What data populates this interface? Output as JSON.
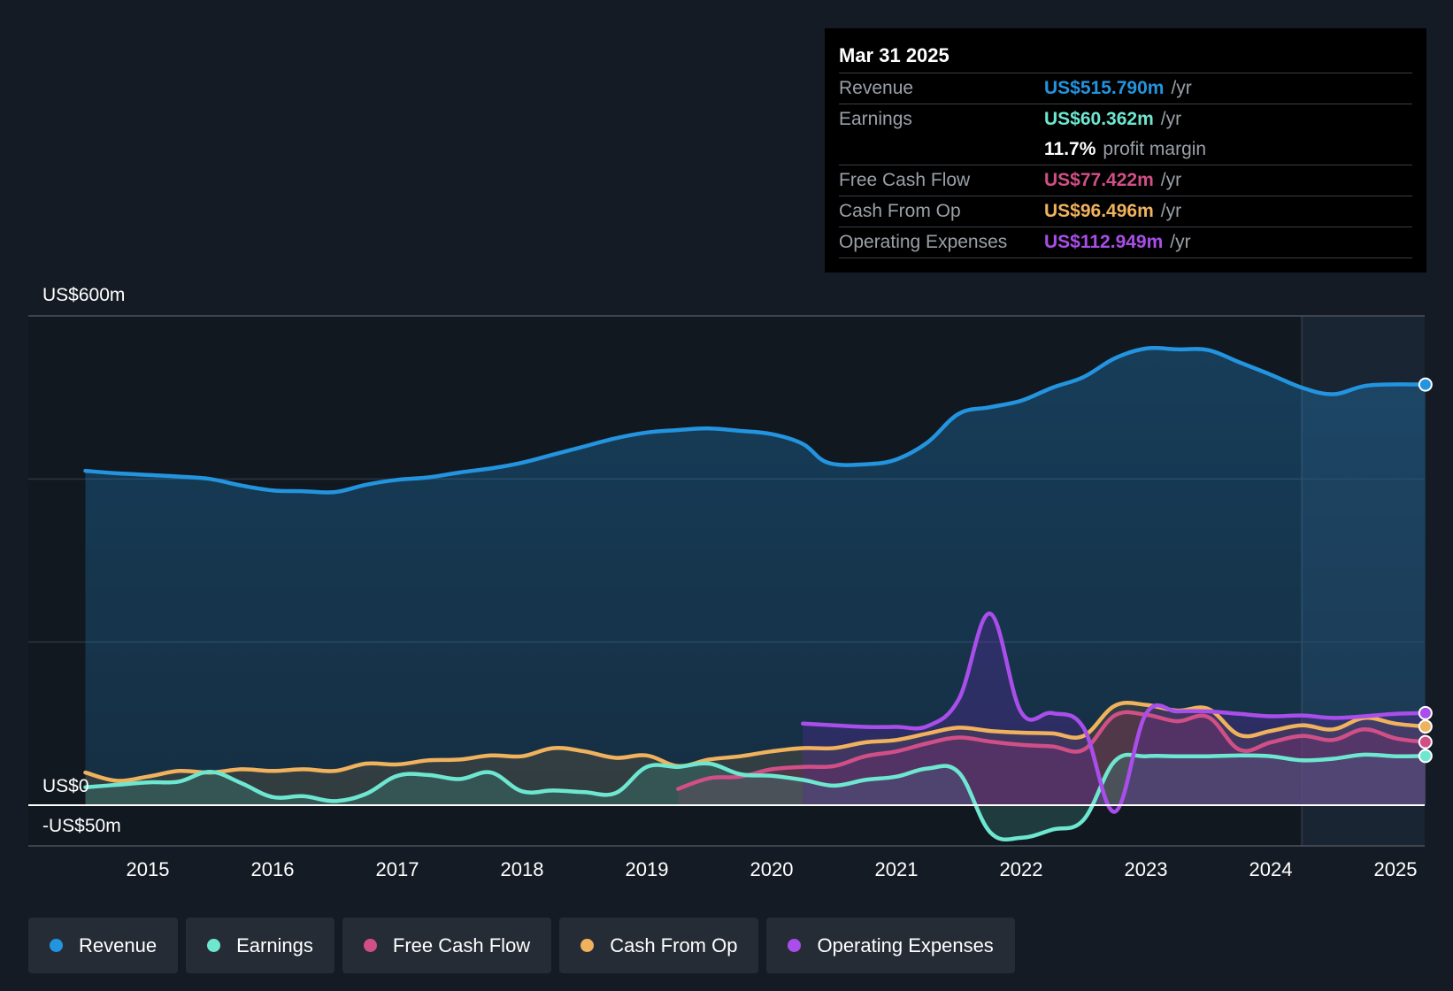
{
  "tooltip": {
    "date": "Mar 31 2025",
    "rows": [
      {
        "label": "Revenue",
        "value": "US$515.790m",
        "unit": "/yr",
        "color": "#2394df"
      },
      {
        "label": "Earnings",
        "value": "US$60.362m",
        "unit": "/yr",
        "color": "#6ee7d1"
      },
      {
        "label": "",
        "value": "11.7%",
        "unit": "profit margin",
        "color": "#ffffff"
      },
      {
        "label": "Free Cash Flow",
        "value": "US$77.422m",
        "unit": "/yr",
        "color": "#d14f87"
      },
      {
        "label": "Cash From Op",
        "value": "US$96.496m",
        "unit": "/yr",
        "color": "#f0b25d"
      },
      {
        "label": "Operating Expenses",
        "value": "US$112.949m",
        "unit": "/yr",
        "color": "#a94eea"
      }
    ]
  },
  "legend": [
    {
      "label": "Revenue",
      "color": "#2394df"
    },
    {
      "label": "Earnings",
      "color": "#6ee7d1"
    },
    {
      "label": "Free Cash Flow",
      "color": "#d14f87"
    },
    {
      "label": "Cash From Op",
      "color": "#f0b25d"
    },
    {
      "label": "Operating Expenses",
      "color": "#a94eea"
    }
  ],
  "chart_data": {
    "type": "area",
    "title": "",
    "xlabel": "",
    "ylabel": "",
    "ylim": [
      -50,
      600
    ],
    "xlim": [
      2014.05,
      2025.24
    ],
    "y_axis_labels": [
      {
        "value": 600,
        "label": "US$600m"
      },
      {
        "value": 0,
        "label": "US$0"
      },
      {
        "value": -50,
        "label": "-US$50m"
      }
    ],
    "gridlines": [
      200,
      400
    ],
    "x_tick_values": [
      2015,
      2016,
      2017,
      2018,
      2019,
      2020,
      2021,
      2022,
      2023,
      2024,
      2025
    ],
    "x_tick_labels": [
      "2015",
      "2016",
      "2017",
      "2018",
      "2019",
      "2020",
      "2021",
      "2022",
      "2023",
      "2024",
      "2025"
    ],
    "forecast_start": 2024.25,
    "series": [
      {
        "name": "Revenue",
        "color": "#2394df",
        "points": [
          [
            2014.5,
            410
          ],
          [
            2014.75,
            407
          ],
          [
            2015,
            405
          ],
          [
            2015.25,
            403
          ],
          [
            2015.5,
            400
          ],
          [
            2015.75,
            392
          ],
          [
            2016,
            386
          ],
          [
            2016.25,
            385
          ],
          [
            2016.5,
            384
          ],
          [
            2016.75,
            393
          ],
          [
            2017,
            399
          ],
          [
            2017.25,
            402
          ],
          [
            2017.5,
            408
          ],
          [
            2017.75,
            413
          ],
          [
            2018,
            420
          ],
          [
            2018.25,
            430
          ],
          [
            2018.5,
            440
          ],
          [
            2018.75,
            450
          ],
          [
            2019,
            457
          ],
          [
            2019.25,
            460
          ],
          [
            2019.5,
            462
          ],
          [
            2019.75,
            459
          ],
          [
            2020,
            455
          ],
          [
            2020.25,
            443
          ],
          [
            2020.45,
            420
          ],
          [
            2020.75,
            418
          ],
          [
            2021,
            424
          ],
          [
            2021.25,
            445
          ],
          [
            2021.5,
            480
          ],
          [
            2021.75,
            488
          ],
          [
            2022,
            496
          ],
          [
            2022.25,
            512
          ],
          [
            2022.5,
            525
          ],
          [
            2022.75,
            548
          ],
          [
            2023,
            560
          ],
          [
            2023.25,
            559
          ],
          [
            2023.5,
            558
          ],
          [
            2023.75,
            543
          ],
          [
            2024,
            528
          ],
          [
            2024.25,
            512
          ],
          [
            2024.5,
            504
          ],
          [
            2024.75,
            514
          ],
          [
            2025,
            516
          ],
          [
            2025.24,
            515.79
          ]
        ]
      },
      {
        "name": "Cash From Op",
        "color": "#f0b25d",
        "points": [
          [
            2014.5,
            40
          ],
          [
            2014.75,
            30
          ],
          [
            2015,
            35
          ],
          [
            2015.25,
            42
          ],
          [
            2015.5,
            40
          ],
          [
            2015.75,
            44
          ],
          [
            2016,
            42
          ],
          [
            2016.25,
            44
          ],
          [
            2016.5,
            42
          ],
          [
            2016.75,
            51
          ],
          [
            2017,
            50
          ],
          [
            2017.25,
            55
          ],
          [
            2017.5,
            56
          ],
          [
            2017.75,
            61
          ],
          [
            2018,
            60
          ],
          [
            2018.25,
            70
          ],
          [
            2018.5,
            66
          ],
          [
            2018.75,
            58
          ],
          [
            2019,
            61
          ],
          [
            2019.25,
            48
          ],
          [
            2019.5,
            56
          ],
          [
            2019.75,
            60
          ],
          [
            2020,
            66
          ],
          [
            2020.25,
            70
          ],
          [
            2020.5,
            70
          ],
          [
            2020.75,
            77
          ],
          [
            2021,
            80
          ],
          [
            2021.25,
            88
          ],
          [
            2021.5,
            95
          ],
          [
            2021.75,
            91
          ],
          [
            2022,
            89
          ],
          [
            2022.25,
            88
          ],
          [
            2022.5,
            85
          ],
          [
            2022.75,
            122
          ],
          [
            2023,
            123
          ],
          [
            2023.25,
            116
          ],
          [
            2023.5,
            118
          ],
          [
            2023.75,
            86
          ],
          [
            2024,
            91
          ],
          [
            2024.25,
            98
          ],
          [
            2024.5,
            93
          ],
          [
            2024.75,
            107
          ],
          [
            2025,
            100
          ],
          [
            2025.24,
            96.496
          ]
        ]
      },
      {
        "name": "Free Cash Flow",
        "color": "#d14f87",
        "points": [
          [
            2019.25,
            20
          ],
          [
            2019.5,
            33
          ],
          [
            2019.75,
            35
          ],
          [
            2020,
            44
          ],
          [
            2020.25,
            47
          ],
          [
            2020.5,
            48
          ],
          [
            2020.75,
            60
          ],
          [
            2021,
            66
          ],
          [
            2021.25,
            76
          ],
          [
            2021.5,
            83
          ],
          [
            2021.75,
            78
          ],
          [
            2022,
            74
          ],
          [
            2022.25,
            72
          ],
          [
            2022.5,
            68
          ],
          [
            2022.75,
            110
          ],
          [
            2023,
            111
          ],
          [
            2023.25,
            103
          ],
          [
            2023.5,
            108
          ],
          [
            2023.75,
            68
          ],
          [
            2024,
            77
          ],
          [
            2024.25,
            85
          ],
          [
            2024.5,
            80
          ],
          [
            2024.75,
            93
          ],
          [
            2025,
            82
          ],
          [
            2025.24,
            77.422
          ]
        ]
      },
      {
        "name": "Earnings",
        "color": "#6ee7d1",
        "points": [
          [
            2014.5,
            22
          ],
          [
            2014.75,
            25
          ],
          [
            2015,
            28
          ],
          [
            2015.25,
            29
          ],
          [
            2015.5,
            41
          ],
          [
            2015.75,
            27
          ],
          [
            2016,
            10
          ],
          [
            2016.25,
            11
          ],
          [
            2016.5,
            5
          ],
          [
            2016.75,
            14
          ],
          [
            2017,
            36
          ],
          [
            2017.25,
            37
          ],
          [
            2017.5,
            32
          ],
          [
            2017.75,
            40
          ],
          [
            2018,
            17
          ],
          [
            2018.25,
            18
          ],
          [
            2018.5,
            16
          ],
          [
            2018.75,
            15
          ],
          [
            2019,
            47
          ],
          [
            2019.25,
            47
          ],
          [
            2019.5,
            51
          ],
          [
            2019.75,
            38
          ],
          [
            2020,
            36
          ],
          [
            2020.25,
            31
          ],
          [
            2020.5,
            24
          ],
          [
            2020.75,
            31
          ],
          [
            2021,
            35
          ],
          [
            2021.25,
            45
          ],
          [
            2021.5,
            40
          ],
          [
            2021.75,
            -33
          ],
          [
            2022,
            -40
          ],
          [
            2022.25,
            -30
          ],
          [
            2022.5,
            -18
          ],
          [
            2022.75,
            54
          ],
          [
            2023,
            60
          ],
          [
            2023.25,
            60
          ],
          [
            2023.5,
            60
          ],
          [
            2023.75,
            61
          ],
          [
            2024,
            60
          ],
          [
            2024.25,
            55
          ],
          [
            2024.5,
            57
          ],
          [
            2024.75,
            62
          ],
          [
            2025,
            60
          ],
          [
            2025.24,
            60.362
          ]
        ]
      },
      {
        "name": "Operating Expenses",
        "color": "#a94eea",
        "points": [
          [
            2020.25,
            100
          ],
          [
            2020.5,
            98
          ],
          [
            2020.75,
            96
          ],
          [
            2021,
            96
          ],
          [
            2021.25,
            97
          ],
          [
            2021.5,
            130
          ],
          [
            2021.75,
            235
          ],
          [
            2022,
            114
          ],
          [
            2022.25,
            113
          ],
          [
            2022.5,
            95
          ],
          [
            2022.75,
            -8
          ],
          [
            2023,
            112
          ],
          [
            2023.25,
            115
          ],
          [
            2023.5,
            115
          ],
          [
            2023.75,
            112
          ],
          [
            2024,
            109
          ],
          [
            2024.25,
            110
          ],
          [
            2024.5,
            107
          ],
          [
            2024.75,
            109
          ],
          [
            2025,
            112
          ],
          [
            2025.24,
            112.949
          ]
        ]
      }
    ]
  }
}
